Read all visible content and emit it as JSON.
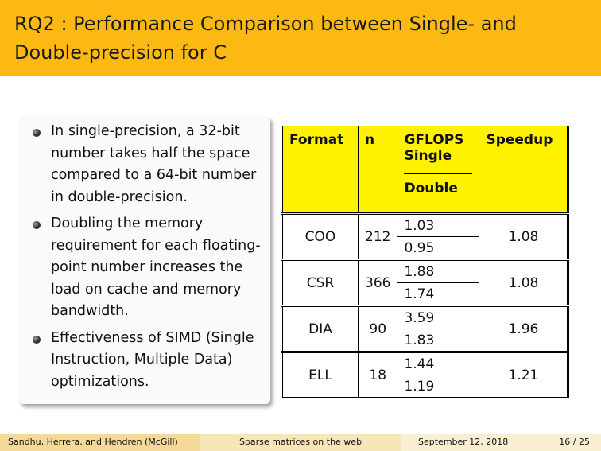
{
  "slide": {
    "title": "RQ2 : Performance Comparison between Single- and Double-precision for C"
  },
  "bullets": [
    "In single-precision, a 32-bit number takes half the space compared to a 64-bit number in double-precision.",
    "Doubling the memory requirement for each floating-point number increases the load on cache and memory bandwidth.",
    "Effectiveness of SIMD (Single Instruction, Multiple Data) optimizations."
  ],
  "table": {
    "headers": {
      "format": "Format",
      "n": "n",
      "gflops": "GFLOPS",
      "single": "Single",
      "double": "Double",
      "speedup": "Speedup"
    },
    "rows": [
      {
        "format": "COO",
        "n": "212",
        "single": "1.03",
        "double": "0.95",
        "speedup": "1.08"
      },
      {
        "format": "CSR",
        "n": "366",
        "single": "1.88",
        "double": "1.74",
        "speedup": "1.08"
      },
      {
        "format": "DIA",
        "n": "90",
        "single": "3.59",
        "double": "1.83",
        "speedup": "1.96"
      },
      {
        "format": "ELL",
        "n": "18",
        "single": "1.44",
        "double": "1.19",
        "speedup": "1.21"
      }
    ]
  },
  "footer": {
    "authors": "Sandhu, Herrera, and Hendren  (McGill)",
    "talk_title": "Sparse matrices on the web",
    "date": "September 12, 2018",
    "page": "16 / 25"
  },
  "colors": {
    "title_bar": "#fdb913",
    "table_header": "#fff200"
  }
}
